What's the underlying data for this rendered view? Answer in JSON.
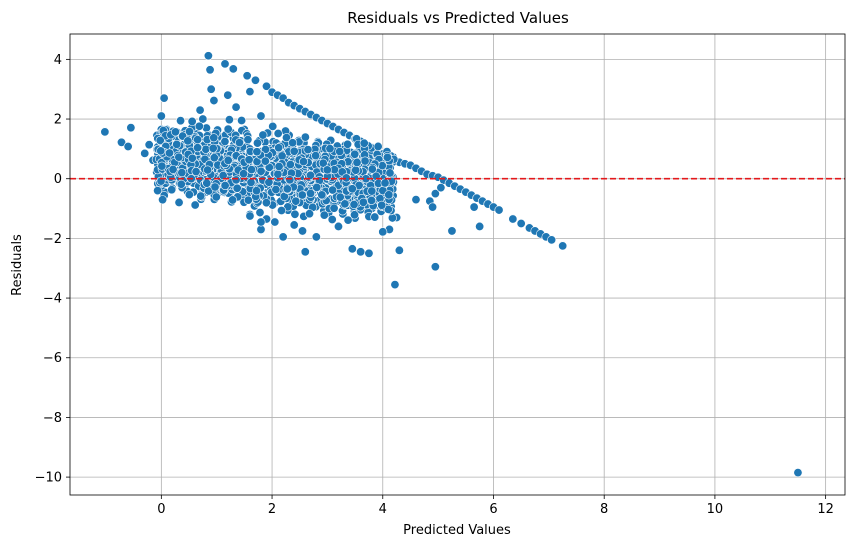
{
  "chart_data": {
    "type": "scatter",
    "title": "Residuals vs Predicted Values",
    "xlabel": "Predicted Values",
    "ylabel": "Residuals",
    "xlim": [
      -1.65,
      12.35
    ],
    "ylim": [
      -10.6,
      4.85
    ],
    "xticks": [
      0,
      2,
      4,
      6,
      8,
      10,
      12
    ],
    "yticks": [
      -10,
      -8,
      -6,
      -4,
      -2,
      0,
      2,
      4
    ],
    "ytick_labels": [
      "−10",
      "−8",
      "−6",
      "−4",
      "−2",
      "0",
      "2",
      "4"
    ],
    "grid": true,
    "marker_color": "#1f77b4",
    "reference_line": {
      "y": 0,
      "color": "#e31a1c",
      "style": "dashed"
    },
    "points": [
      [
        -1.02,
        1.57
      ],
      [
        -0.72,
        1.22
      ],
      [
        -0.6,
        1.08
      ],
      [
        -0.55,
        1.71
      ],
      [
        -0.3,
        0.85
      ],
      [
        -0.22,
        1.14
      ],
      [
        -0.15,
        0.62
      ],
      [
        -0.08,
        1.45
      ],
      [
        -0.05,
        0.98
      ],
      [
        0.0,
        1.65
      ],
      [
        0.0,
        2.1
      ],
      [
        0.05,
        2.7
      ],
      [
        0.1,
        0.4
      ],
      [
        0.15,
        1.2
      ],
      [
        0.2,
        0.8
      ],
      [
        0.3,
        1.25
      ],
      [
        0.4,
        0.25
      ],
      [
        0.5,
        0.9
      ],
      [
        0.55,
        1.7
      ],
      [
        0.65,
        1.5
      ],
      [
        0.7,
        2.3
      ],
      [
        0.75,
        2.0
      ],
      [
        0.8,
        0.5
      ],
      [
        0.85,
        4.12
      ],
      [
        0.88,
        3.65
      ],
      [
        0.9,
        3.0
      ],
      [
        0.95,
        2.62
      ],
      [
        1.05,
        1.4
      ],
      [
        1.1,
        1.0
      ],
      [
        1.15,
        3.85
      ],
      [
        1.2,
        2.8
      ],
      [
        1.25,
        1.55
      ],
      [
        1.3,
        3.68
      ],
      [
        1.35,
        2.4
      ],
      [
        1.4,
        0.3
      ],
      [
        1.45,
        1.95
      ],
      [
        1.5,
        1.65
      ],
      [
        1.55,
        3.45
      ],
      [
        1.6,
        2.92
      ],
      [
        1.7,
        3.3
      ],
      [
        1.8,
        2.1
      ],
      [
        1.9,
        3.1
      ],
      [
        2.0,
        2.9
      ],
      [
        2.1,
        2.8
      ],
      [
        2.2,
        2.7
      ],
      [
        2.3,
        2.55
      ],
      [
        2.4,
        2.45
      ],
      [
        2.5,
        2.35
      ],
      [
        2.6,
        2.25
      ],
      [
        2.7,
        2.15
      ],
      [
        2.8,
        2.05
      ],
      [
        2.9,
        1.95
      ],
      [
        3.0,
        1.85
      ],
      [
        3.1,
        1.75
      ],
      [
        3.2,
        1.65
      ],
      [
        3.3,
        1.55
      ],
      [
        3.4,
        1.45
      ],
      [
        3.5,
        1.35
      ],
      [
        3.6,
        1.25
      ],
      [
        3.7,
        1.15
      ],
      [
        3.8,
        1.05
      ],
      [
        3.9,
        0.95
      ],
      [
        4.0,
        0.85
      ],
      [
        4.1,
        0.75
      ],
      [
        4.2,
        0.65
      ],
      [
        4.3,
        0.55
      ],
      [
        4.4,
        0.5
      ],
      [
        4.5,
        0.45
      ],
      [
        4.6,
        0.35
      ],
      [
        4.7,
        0.25
      ],
      [
        4.8,
        0.15
      ],
      [
        4.9,
        0.1
      ],
      [
        5.0,
        0.05
      ],
      [
        5.1,
        -0.05
      ],
      [
        5.2,
        -0.15
      ],
      [
        5.3,
        -0.25
      ],
      [
        5.4,
        -0.35
      ],
      [
        5.5,
        -0.45
      ],
      [
        5.6,
        -0.55
      ],
      [
        5.7,
        -0.65
      ],
      [
        5.8,
        -0.75
      ],
      [
        5.9,
        -0.85
      ],
      [
        6.0,
        -0.95
      ],
      [
        6.1,
        -1.05
      ],
      [
        6.35,
        -1.35
      ],
      [
        6.5,
        -1.5
      ],
      [
        6.65,
        -1.65
      ],
      [
        6.75,
        -1.75
      ],
      [
        6.85,
        -1.85
      ],
      [
        6.95,
        -1.95
      ],
      [
        7.05,
        -2.05
      ],
      [
        7.25,
        -2.25
      ],
      [
        5.65,
        -0.95
      ],
      [
        5.75,
        -1.6
      ],
      [
        5.25,
        -1.75
      ],
      [
        4.95,
        -2.95
      ],
      [
        4.85,
        -0.75
      ],
      [
        4.9,
        -0.95
      ],
      [
        4.95,
        -0.5
      ],
      [
        5.05,
        -0.3
      ],
      [
        4.6,
        -0.7
      ],
      [
        4.3,
        -2.4
      ],
      [
        4.22,
        -3.55
      ],
      [
        4.25,
        -1.3
      ],
      [
        4.12,
        -1.7
      ],
      [
        4.0,
        -1.78
      ],
      [
        3.75,
        -2.5
      ],
      [
        3.6,
        -2.45
      ],
      [
        3.45,
        -2.35
      ],
      [
        3.5,
        -1.32
      ],
      [
        3.2,
        -1.6
      ],
      [
        2.8,
        -1.95
      ],
      [
        2.6,
        -2.45
      ],
      [
        2.55,
        -1.75
      ],
      [
        2.4,
        -1.55
      ],
      [
        2.2,
        -1.95
      ],
      [
        2.05,
        -1.45
      ],
      [
        1.9,
        -1.35
      ],
      [
        1.8,
        -1.7
      ],
      [
        1.6,
        -1.2
      ],
      [
        1.8,
        -1.45
      ],
      [
        11.5,
        -9.85
      ]
    ]
  }
}
